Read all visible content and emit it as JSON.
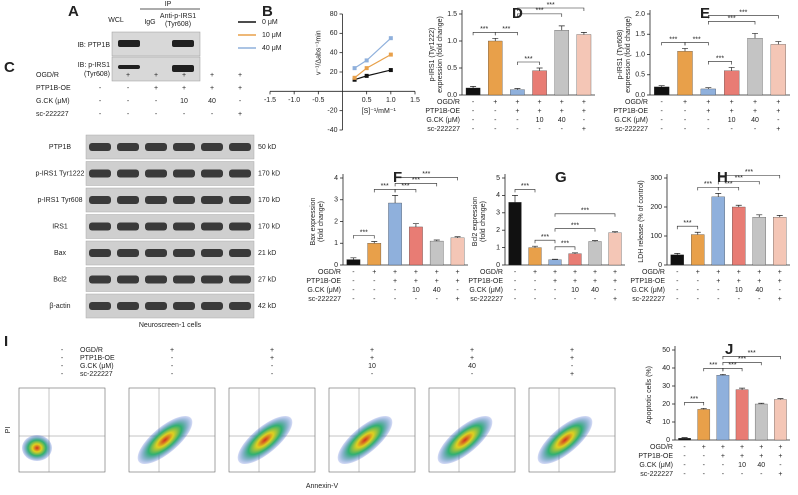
{
  "panel_a": {
    "letter": "A",
    "ip": "IP",
    "lanes": [
      "WCL",
      "IgG",
      "Anti-p-IRS1",
      "(Tyr608)"
    ],
    "rows": [
      "IB: PTP1B",
      "IB: p-IRS1",
      "(Tyr608)"
    ]
  },
  "panel_c": {
    "letter": "C",
    "conditions": [
      {
        "name": "OGD/R",
        "values": [
          "-",
          "+",
          "+",
          "+",
          "+",
          "+"
        ]
      },
      {
        "name": "PTP1B-OE",
        "values": [
          "-",
          "-",
          "+",
          "+",
          "+",
          "+"
        ]
      },
      {
        "name": "G.CK (μM)",
        "values": [
          "-",
          "-",
          "-",
          "10",
          "40",
          "-"
        ]
      },
      {
        "name": "sc-222227",
        "values": [
          "-",
          "-",
          "-",
          "-",
          "-",
          "+"
        ]
      }
    ],
    "blots": [
      {
        "name": "PTP1B",
        "size": "50 kD"
      },
      {
        "name": "p-IRS1 Tyr1222",
        "size": "170 kD"
      },
      {
        "name": "p-IRS1 Tyr608",
        "size": "170 kD"
      },
      {
        "name": "IRS1",
        "size": "170 kD"
      },
      {
        "name": "Bax",
        "size": "21 kD"
      },
      {
        "name": "Bcl2",
        "size": "27 kD"
      },
      {
        "name": "β-actin",
        "size": "42 kD"
      }
    ],
    "caption": "Neuroscreen-1 cells"
  },
  "panel_i": {
    "letter": "I",
    "conditions": [
      {
        "name": "OGD/R",
        "values": [
          "-",
          "+",
          "+",
          "+",
          "+",
          "+"
        ]
      },
      {
        "name": "PTP1B-OE",
        "values": [
          "-",
          "-",
          "+",
          "+",
          "+",
          "+"
        ]
      },
      {
        "name": "G.CK (μM)",
        "values": [
          "-",
          "-",
          "-",
          "10",
          "40",
          "-"
        ]
      },
      {
        "name": "sc-222227",
        "values": [
          "-",
          "-",
          "-",
          "-",
          "-",
          "+"
        ]
      }
    ],
    "ylabel": "PI",
    "xlabel": "Annexin-V"
  },
  "chart_data": [
    {
      "type": "line",
      "panel": "B",
      "xlabel": "[S]⁻¹/mM⁻¹",
      "ylabel": "v⁻¹/Δabs⁻¹min",
      "x": [
        0.25,
        0.5,
        1.0
      ],
      "series": [
        {
          "name": "0 μM",
          "color": "#111111",
          "values": [
            12,
            16,
            22
          ]
        },
        {
          "name": "10 μM",
          "color": "#e8a04a",
          "values": [
            14,
            24,
            38
          ]
        },
        {
          "name": "40 μM",
          "color": "#8fb0dc",
          "values": [
            24,
            32,
            55
          ]
        }
      ],
      "xlim": [
        -1.5,
        1.5
      ],
      "ylim": [
        -40,
        80
      ],
      "xticks": [
        -1.5,
        {
          "value": -1,
          "label": "-1.0"
        },
        -0.5,
        0.5,
        {
          "value": 1,
          "label": "1.0"
        },
        1.5
      ],
      "yticks": [
        -40,
        -20,
        20,
        40,
        60,
        80
      ]
    },
    {
      "type": "bar",
      "panel": "D",
      "ylabel": [
        "p-IRS1 (Tyr1222)",
        "expression (fold change)"
      ],
      "values": [
        0.13,
        1.0,
        0.1,
        0.45,
        1.2,
        1.12
      ],
      "errors": [
        0.03,
        0.05,
        0.02,
        0.05,
        0.08,
        0.04
      ],
      "ylim": [
        0,
        1.5
      ],
      "yticks": [
        {
          "value": 0,
          "label": "0.0"
        },
        0.5,
        {
          "value": 1,
          "label": "1.0"
        },
        1.5
      ]
    },
    {
      "type": "bar",
      "panel": "E",
      "ylabel": [
        "p-IRS1 (Tyr608)",
        "expression (fold change)"
      ],
      "values": [
        0.2,
        1.08,
        0.15,
        0.6,
        1.4,
        1.25
      ],
      "errors": [
        0.03,
        0.07,
        0.03,
        0.08,
        0.12,
        0.07
      ],
      "ylim": [
        0,
        2
      ],
      "yticks": [
        {
          "value": 0,
          "label": "0.0"
        },
        0.5,
        {
          "value": 1,
          "label": "1.0"
        },
        1.5,
        {
          "value": 2,
          "label": "2.0"
        }
      ]
    },
    {
      "type": "bar",
      "panel": "F",
      "ylabel": [
        "Bax expression",
        "(fold change)"
      ],
      "values": [
        0.25,
        1.0,
        2.85,
        1.75,
        1.1,
        1.25
      ],
      "errors": [
        0.08,
        0.08,
        0.35,
        0.15,
        0.05,
        0.05
      ],
      "ylim": [
        0,
        4
      ],
      "yticks": [
        0,
        1,
        2,
        3,
        4
      ]
    },
    {
      "type": "bar",
      "panel": "G",
      "ylabel": [
        "Bcl2 expression",
        "(fold change)"
      ],
      "values": [
        3.6,
        1.0,
        0.3,
        0.65,
        1.35,
        1.85
      ],
      "errors": [
        0.4,
        0.08,
        0.03,
        0.05,
        0.05,
        0.06
      ],
      "ylim": [
        0,
        5
      ],
      "yticks": [
        0,
        1,
        2,
        3,
        4,
        5
      ]
    },
    {
      "type": "bar",
      "panel": "H",
      "ylabel": [
        "LDH release (% of control)"
      ],
      "values": [
        35,
        105,
        235,
        200,
        165,
        165
      ],
      "errors": [
        5,
        8,
        12,
        6,
        8,
        6
      ],
      "ylim": [
        0,
        300
      ],
      "yticks": [
        0,
        100,
        200,
        300
      ]
    },
    {
      "type": "bar",
      "panel": "J",
      "ylabel": [
        "Apoptotic cells (%)"
      ],
      "values": [
        1,
        17,
        36,
        28,
        20,
        22.5
      ],
      "errors": [
        0.3,
        0.6,
        0.5,
        0.8,
        0.4,
        0.5
      ],
      "ylim": [
        0,
        50
      ],
      "yticks": [
        0,
        10,
        20,
        30,
        40,
        50
      ]
    }
  ],
  "bar_colors": [
    "#111111",
    "#e8a04a",
    "#8fb0dc",
    "#e87c74",
    "#c4c4c4",
    "#f4c6b6"
  ],
  "bar_conditions": [
    {
      "name": "OGD/R",
      "values": [
        "-",
        "+",
        "+",
        "+",
        "+",
        "+"
      ]
    },
    {
      "name": "PTP1B-OE",
      "values": [
        "-",
        "-",
        "+",
        "+",
        "+",
        "+"
      ]
    },
    {
      "name": "G.CK (μM)",
      "values": [
        "-",
        "-",
        "-",
        "10",
        "40",
        "-"
      ]
    },
    {
      "name": "sc-222227",
      "values": [
        "-",
        "-",
        "-",
        "-",
        "-",
        "+"
      ]
    }
  ],
  "significance": {
    "label": "***",
    "pairs": [
      [
        0,
        1
      ],
      [
        1,
        2
      ],
      [
        2,
        3
      ],
      [
        2,
        4
      ],
      [
        2,
        5
      ]
    ]
  }
}
